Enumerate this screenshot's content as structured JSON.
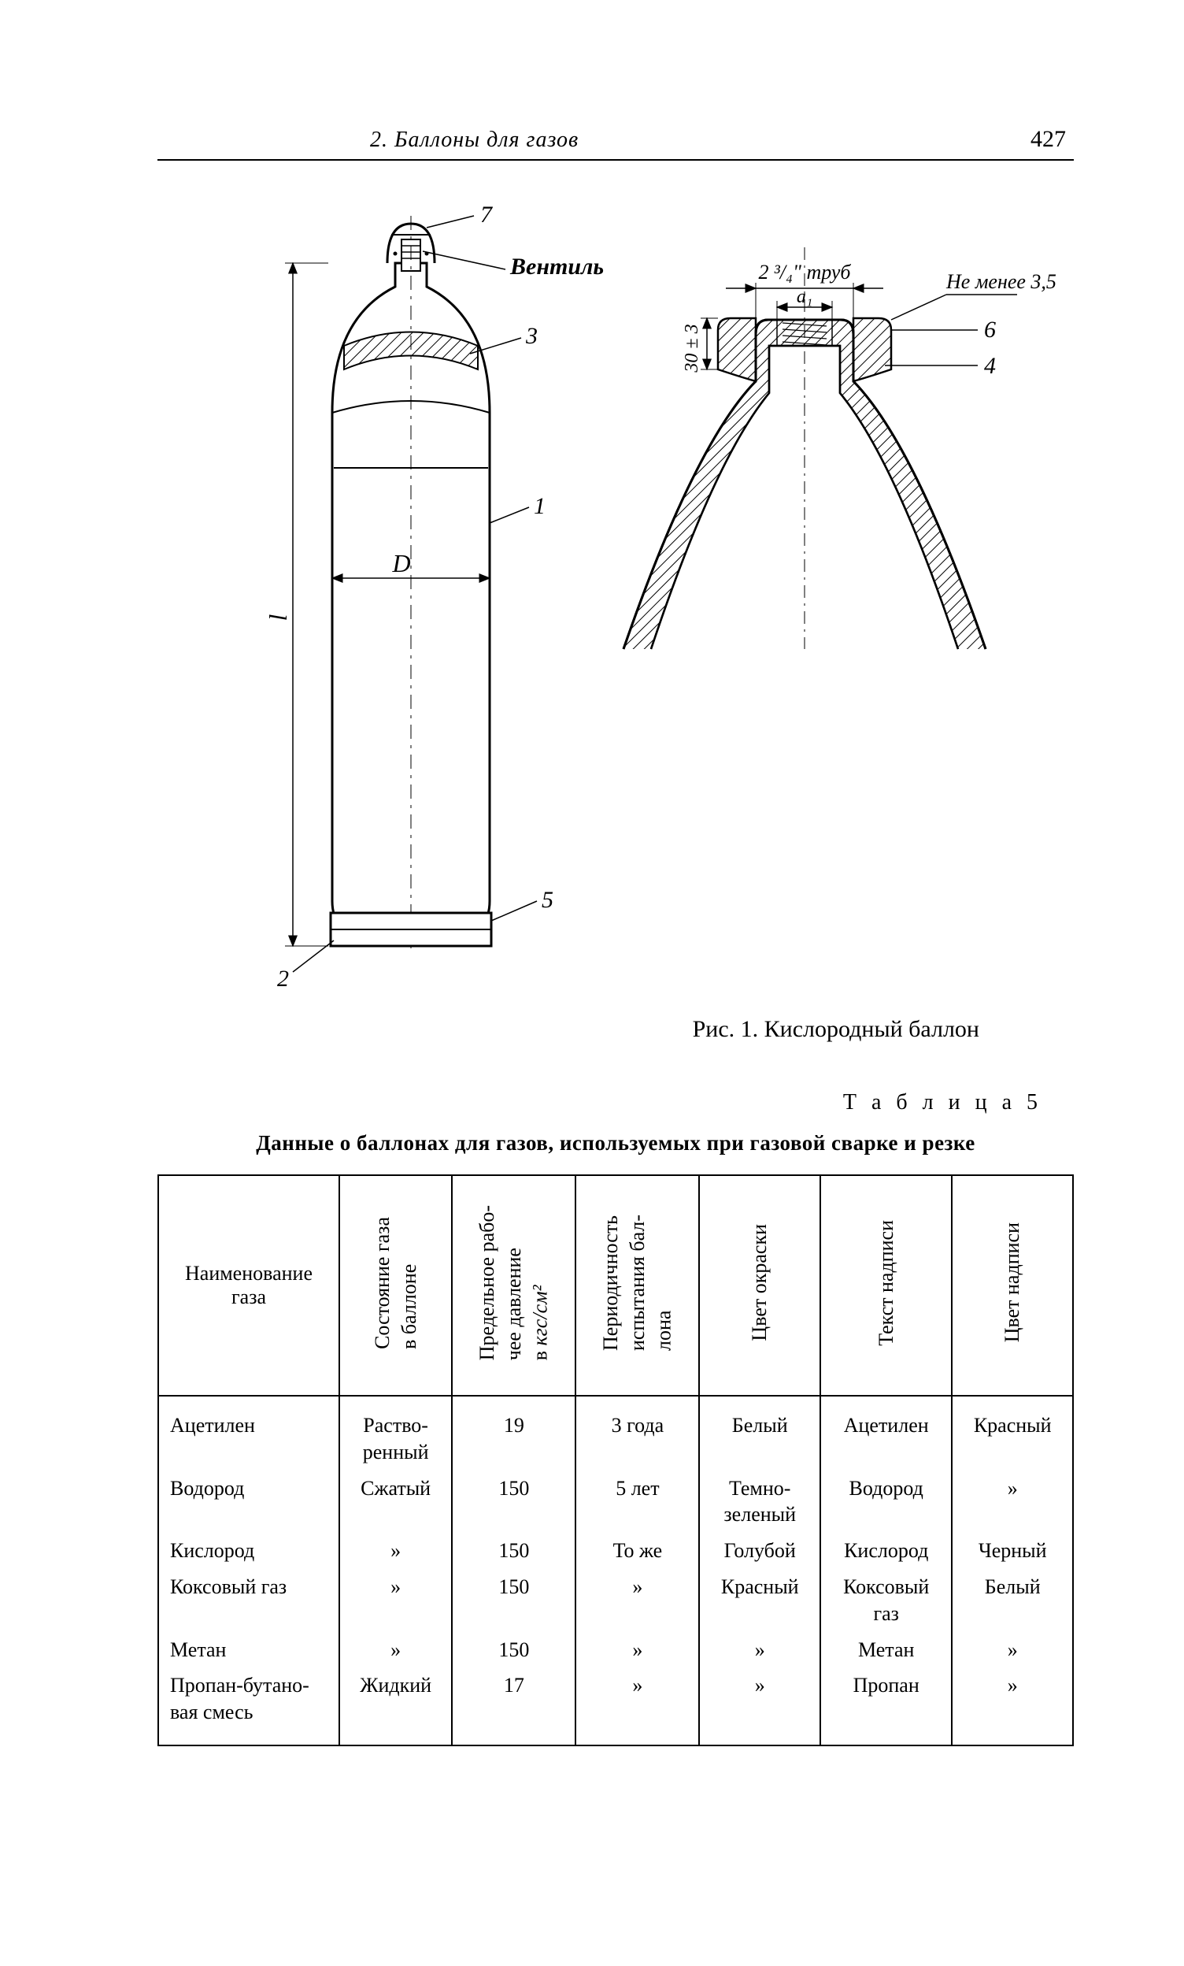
{
  "header": {
    "section_title": "2. Баллоны для газов",
    "page_number": "427"
  },
  "figure": {
    "caption": "Рис. 1. Кислородный баллон",
    "labels": {
      "valve": "Вентиль",
      "n1": "1",
      "n2": "2",
      "n3": "3",
      "n4": "4",
      "n5": "5",
      "n6": "6",
      "n7": "7",
      "D": "D",
      "l": "l",
      "dim_thread": "2 ³/₄\" труб",
      "a1": "a₁",
      "not_less": "Не менее 3,5",
      "tol30": "30 ± 3"
    },
    "colors": {
      "stroke": "#000000",
      "bg": "#ffffff",
      "hatch": "#000000"
    },
    "stroke_width": 2
  },
  "table": {
    "label": "Т а б л и ц а  5",
    "title": "Данные о баллонах для газов, используемых при газовой сварке и резке",
    "columns": [
      "Наименование газа",
      "Состояние газа\nв баллоне",
      "Предельное рабо-\nчее давление\nв кгс/см²",
      "Периодичность\nиспытания бал-\nлона",
      "Цвет окраски",
      "Текст надписи",
      "Цвет надписи"
    ],
    "rows": [
      {
        "name": "Ацетилен",
        "state": "Раство-\nренный",
        "pressure": "19",
        "period": "3 года",
        "color": "Белый",
        "text": "Ацетилен",
        "text_color": "Красный"
      },
      {
        "name": "Водород",
        "state": "Сжатый",
        "pressure": "150",
        "period": "5 лет",
        "color": "Темно-\nзеленый",
        "text": "Водород",
        "text_color": "»"
      },
      {
        "name": "Кислород",
        "state": "»",
        "pressure": "150",
        "period": "То же",
        "color": "Голубой",
        "text": "Кислород",
        "text_color": "Черный"
      },
      {
        "name": "Коксовый газ",
        "state": "»",
        "pressure": "150",
        "period": "»",
        "color": "Красный",
        "text": "Коксовый\nгаз",
        "text_color": "Белый"
      },
      {
        "name": "Метан",
        "state": "»",
        "pressure": "150",
        "period": "»",
        "color": "»",
        "text": "Метан",
        "text_color": "»"
      },
      {
        "name": "Пропан-бутано-\nвая смесь",
        "state": "Жидкий",
        "pressure": "17",
        "period": "»",
        "color": "»",
        "text": "Пропан",
        "text_color": "»"
      }
    ]
  }
}
